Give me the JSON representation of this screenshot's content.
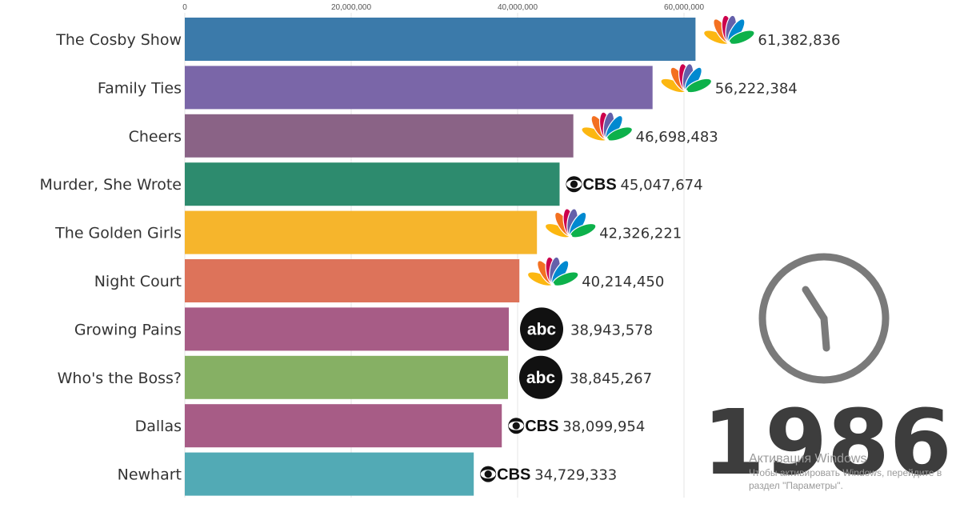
{
  "chart_data": {
    "type": "bar",
    "orientation": "horizontal",
    "categories": [
      "The Cosby Show",
      "Family Ties",
      "Cheers",
      "Murder, She Wrote",
      "The Golden Girls",
      "Night Court",
      "Growing Pains",
      "Who's the Boss?",
      "Dallas",
      "Newhart"
    ],
    "values": [
      61382836,
      56222384,
      46698483,
      45047674,
      42326221,
      40214450,
      38943578,
      38845267,
      38099954,
      34729333
    ],
    "value_labels": [
      "61,382,836",
      "56,222,384",
      "46,698,483",
      "45,047,674",
      "42,326,221",
      "40,214,450",
      "38,943,578",
      "38,845,267",
      "38,099,954",
      "34,729,333"
    ],
    "networks": [
      "nbc-icon",
      "nbc-icon",
      "nbc-icon",
      "cbs-icon",
      "nbc-icon",
      "nbc-icon",
      "abc-icon",
      "abc-icon",
      "cbs-icon",
      "cbs-icon"
    ],
    "colors": [
      "#3b7aaa",
      "#7a66a8",
      "#8a6386",
      "#2d8b6e",
      "#f6b52c",
      "#dd735a",
      "#a75c86",
      "#86b064",
      "#a75c86",
      "#52aab5"
    ],
    "xticks": [
      0,
      20000000,
      40000000,
      60000000
    ],
    "xtick_labels": [
      "0",
      "20,000,000",
      "40,000,000",
      "60,000,000"
    ],
    "xlim": [
      0,
      64000000
    ],
    "grid": "vertical",
    "year": "1986",
    "title": "",
    "xlabel": "",
    "ylabel": ""
  },
  "logos": {
    "cbs": "CBS",
    "abc": "abc"
  },
  "watermark": {
    "title": "Активация Windows",
    "line1": "Чтобы активировать Windows, перейдите в",
    "line2": "раздел \"Параметры\"."
  }
}
